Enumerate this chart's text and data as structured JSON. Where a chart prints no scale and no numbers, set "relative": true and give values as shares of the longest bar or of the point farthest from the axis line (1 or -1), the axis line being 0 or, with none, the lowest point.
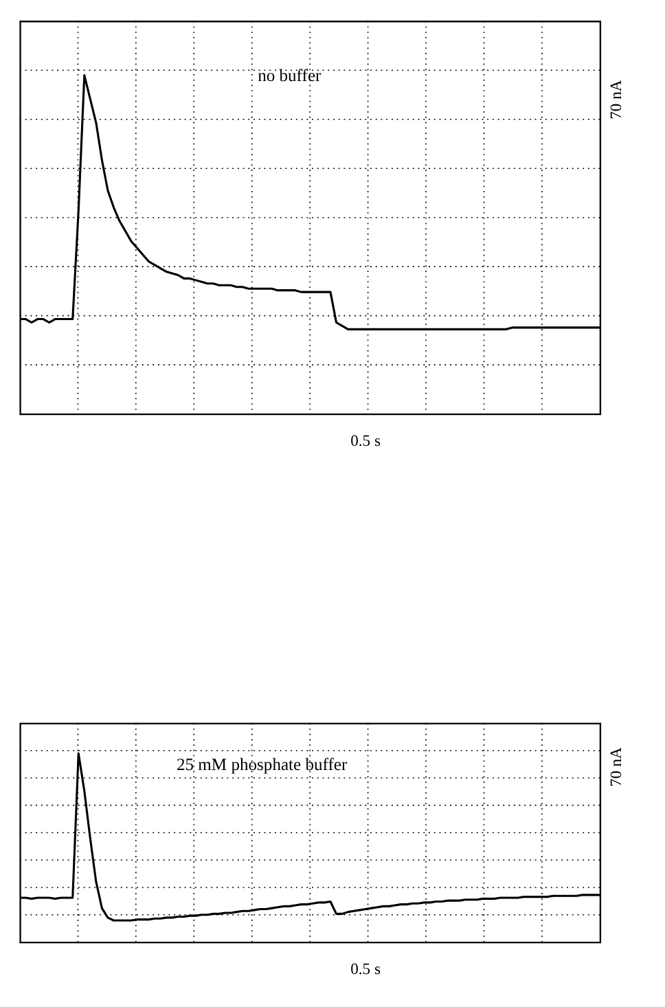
{
  "chart_data": [
    {
      "type": "line",
      "relative": true,
      "grid": true,
      "marker": "none",
      "line_style": "solid",
      "annotations": [
        "no buffer",
        "70 nA",
        "0.5 s"
      ],
      "categories": [
        null,
        null,
        null,
        null,
        null,
        null,
        null,
        null,
        null,
        null,
        null,
        null,
        null,
        null,
        null,
        null,
        null,
        null,
        null,
        null,
        null,
        null,
        null,
        null,
        null,
        null,
        null,
        null,
        null,
        null,
        null,
        null,
        null,
        null,
        null,
        null,
        null,
        null,
        null,
        null,
        null,
        null,
        null,
        null,
        null,
        null,
        null,
        null,
        null,
        null,
        null,
        null,
        null,
        null,
        null,
        null,
        null,
        null,
        null,
        null,
        null,
        null,
        null,
        null,
        null,
        null,
        null,
        null,
        null,
        null,
        null,
        null,
        null,
        null,
        null,
        null,
        null,
        null,
        null,
        null,
        null,
        null,
        null,
        null,
        null,
        null,
        null,
        null,
        null,
        null,
        null,
        null,
        null,
        null,
        null,
        null,
        null,
        null,
        null,
        null
      ],
      "series": [
        {
          "color": "#000000",
          "values": [
            0.28,
            0.28,
            0.27,
            0.28,
            0.28,
            0.27,
            0.28,
            0.28,
            0.28,
            0.28,
            0.6,
            1.0,
            0.93,
            0.86,
            0.75,
            0.66,
            0.61,
            0.57,
            0.54,
            0.51,
            0.49,
            0.47,
            0.45,
            0.44,
            0.43,
            0.42,
            0.415,
            0.41,
            0.4,
            0.4,
            0.395,
            0.39,
            0.385,
            0.385,
            0.38,
            0.38,
            0.38,
            0.375,
            0.375,
            0.37,
            0.37,
            0.37,
            0.37,
            0.37,
            0.365,
            0.365,
            0.365,
            0.365,
            0.36,
            0.36,
            0.36,
            0.36,
            0.36,
            0.36,
            0.27,
            0.26,
            0.25,
            0.25,
            0.25,
            0.25,
            0.25,
            0.25,
            0.25,
            0.25,
            0.25,
            0.25,
            0.25,
            0.25,
            0.25,
            0.25,
            0.25,
            0.25,
            0.25,
            0.25,
            0.25,
            0.25,
            0.25,
            0.25,
            0.25,
            0.25,
            0.25,
            0.25,
            0.25,
            0.25,
            0.255,
            0.255,
            0.255,
            0.255,
            0.255,
            0.255,
            0.255,
            0.255,
            0.255,
            0.255,
            0.255,
            0.255,
            0.255,
            0.255,
            0.255,
            0.255
          ]
        }
      ]
    },
    {
      "type": "line",
      "relative": true,
      "grid": true,
      "marker": "none",
      "line_style": "solid",
      "annotations": [
        "25 mM phosphate buffer",
        "70 nA",
        "0.5 s"
      ],
      "categories": [
        null,
        null,
        null,
        null,
        null,
        null,
        null,
        null,
        null,
        null,
        null,
        null,
        null,
        null,
        null,
        null,
        null,
        null,
        null,
        null,
        null,
        null,
        null,
        null,
        null,
        null,
        null,
        null,
        null,
        null,
        null,
        null,
        null,
        null,
        null,
        null,
        null,
        null,
        null,
        null,
        null,
        null,
        null,
        null,
        null,
        null,
        null,
        null,
        null,
        null,
        null,
        null,
        null,
        null,
        null,
        null,
        null,
        null,
        null,
        null,
        null,
        null,
        null,
        null,
        null,
        null,
        null,
        null,
        null,
        null,
        null,
        null,
        null,
        null,
        null,
        null,
        null,
        null,
        null,
        null,
        null,
        null,
        null,
        null,
        null,
        null,
        null,
        null,
        null,
        null,
        null,
        null,
        null,
        null,
        null,
        null,
        null,
        null,
        null,
        null
      ],
      "series": [
        {
          "color": "#000000",
          "values": [
            0.235,
            0.235,
            0.23,
            0.235,
            0.235,
            0.235,
            0.23,
            0.235,
            0.235,
            0.235,
            1.0,
            0.8,
            0.55,
            0.32,
            0.18,
            0.13,
            0.115,
            0.115,
            0.115,
            0.115,
            0.12,
            0.12,
            0.12,
            0.125,
            0.125,
            0.13,
            0.13,
            0.135,
            0.135,
            0.14,
            0.14,
            0.145,
            0.145,
            0.15,
            0.15,
            0.155,
            0.155,
            0.16,
            0.165,
            0.165,
            0.17,
            0.175,
            0.175,
            0.18,
            0.185,
            0.19,
            0.19,
            0.195,
            0.2,
            0.2,
            0.205,
            0.21,
            0.21,
            0.215,
            0.15,
            0.15,
            0.16,
            0.165,
            0.17,
            0.175,
            0.18,
            0.185,
            0.19,
            0.19,
            0.195,
            0.2,
            0.2,
            0.205,
            0.205,
            0.21,
            0.21,
            0.215,
            0.215,
            0.22,
            0.22,
            0.22,
            0.225,
            0.225,
            0.225,
            0.23,
            0.23,
            0.23,
            0.235,
            0.235,
            0.235,
            0.235,
            0.24,
            0.24,
            0.24,
            0.24,
            0.24,
            0.245,
            0.245,
            0.245,
            0.245,
            0.245,
            0.25,
            0.25,
            0.25,
            0.25
          ]
        }
      ]
    }
  ]
}
